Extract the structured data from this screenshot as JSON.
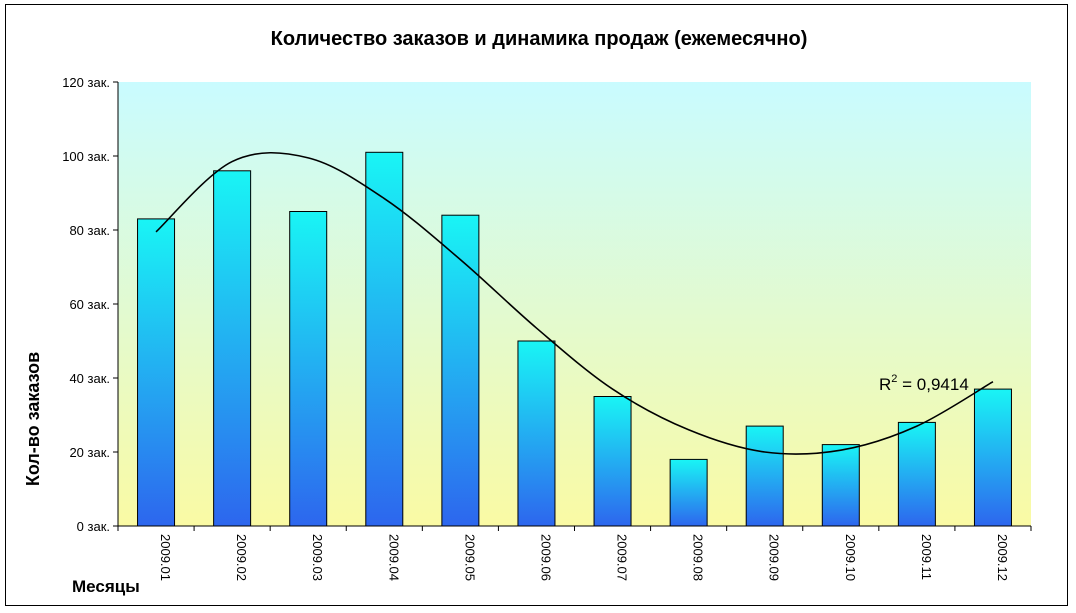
{
  "chart_data": {
    "type": "bar",
    "title": "Количество заказов и динамика продаж (ежемесячно)",
    "xlabel": "Месяцы",
    "ylabel": "Кол-во заказов",
    "categories": [
      "2009.01",
      "2009.02",
      "2009.03",
      "2009.04",
      "2009.05",
      "2009.06",
      "2009.07",
      "2009.08",
      "2009.09",
      "2009.10",
      "2009.11",
      "2009.12"
    ],
    "values": [
      83,
      96,
      85,
      101,
      84,
      50,
      35,
      18,
      27,
      22,
      28,
      37
    ],
    "ylim": [
      0,
      120
    ],
    "yticks": [
      0,
      20,
      40,
      60,
      80,
      100,
      120
    ],
    "ytick_labels": [
      "0 зак.",
      "20 зак.",
      "40 зак.",
      "60 зак.",
      "80 зак.",
      "100 зак.",
      "120 зак."
    ],
    "grid": false,
    "legend": "none",
    "trendline": {
      "type": "polynomial",
      "r_squared_label": "R",
      "r_squared_superscript": "2",
      "r_squared_value": " = 0,9414",
      "points": [
        79.5,
        98.5,
        99.5,
        88.5,
        72,
        53.5,
        37,
        26,
        20,
        20.5,
        27,
        39
      ]
    },
    "colors": {
      "bar_top": "#19f5f5",
      "bar_bottom": "#2d66ee",
      "plot_bg_top": "#c9fbff",
      "plot_bg_bottom": "#fafaa4",
      "trendline": "#000000"
    }
  }
}
